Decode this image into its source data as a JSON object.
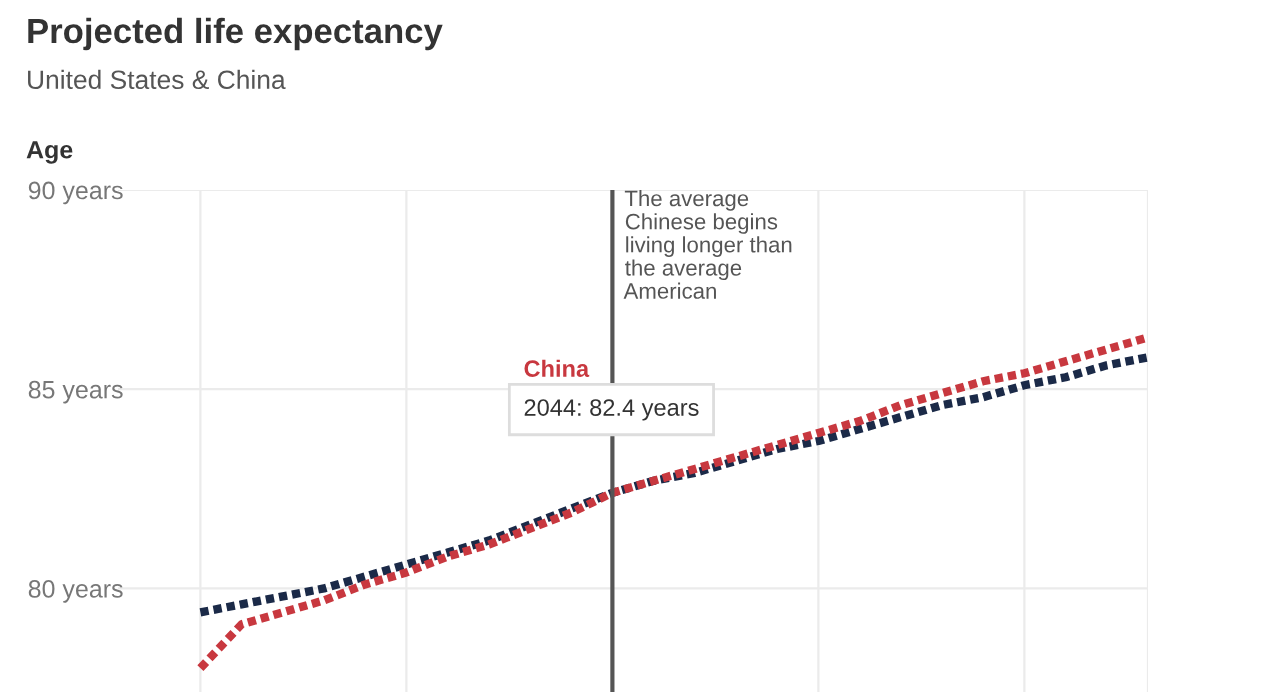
{
  "chart_data": {
    "type": "line",
    "title": "Projected life expectancy",
    "subtitle": "United States & China",
    "ylabel": "Age",
    "categories": [
      null,
      null,
      null,
      null,
      null,
      null,
      null,
      null,
      null,
      null,
      null,
      null,
      null,
      null,
      null,
      null,
      null,
      null,
      null,
      null,
      null,
      null,
      null,
      null
    ],
    "ylim": [
      77.4,
      90
    ],
    "yticks": [
      {
        "value": 80,
        "label": "80 years"
      },
      {
        "value": 85,
        "label": "85 years"
      },
      {
        "value": 90,
        "label": "90 years"
      }
    ],
    "tick_labels": "y",
    "grid": true,
    "legend": false,
    "marker": "none",
    "line_style": "dotted",
    "series": [
      {
        "color": "#1b2a48",
        "values": [
          79.4,
          79.6,
          79.8,
          80.0,
          80.3,
          80.6,
          80.9,
          81.2,
          81.6,
          82.0,
          82.4,
          82.7,
          82.9,
          83.2,
          83.5,
          83.7,
          84.0,
          84.3,
          84.6,
          84.8,
          85.1,
          85.3,
          85.6,
          85.8
        ]
      },
      {
        "name": "China",
        "color": "#c8383f",
        "values": [
          78.0,
          79.1,
          79.4,
          79.7,
          80.1,
          80.4,
          80.8,
          81.1,
          81.5,
          81.9,
          82.4,
          82.7,
          83.0,
          83.3,
          83.6,
          83.9,
          84.2,
          84.6,
          84.9,
          85.2,
          85.4,
          85.7,
          86.0,
          86.3
        ]
      }
    ],
    "annotations": [
      "The average\nChinese begins\nliving longer than\nthe average\nAmerican",
      "2044: 82.4 years"
    ]
  }
}
